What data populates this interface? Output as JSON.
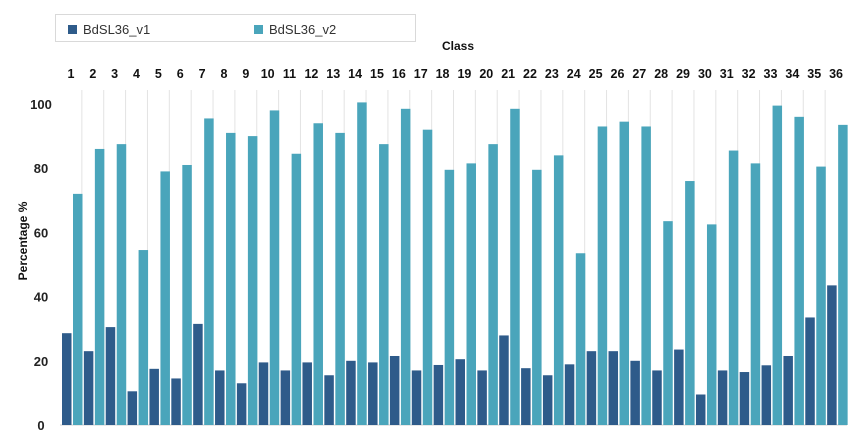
{
  "chart_data": {
    "type": "bar",
    "title": "",
    "xlabel": "Class",
    "ylabel": "Percentage %",
    "ylim": [
      0,
      100
    ],
    "yticks": [
      0,
      20,
      40,
      60,
      80,
      100
    ],
    "grid": false,
    "legend_position": "top-left",
    "categories": [
      "1",
      "2",
      "3",
      "4",
      "5",
      "6",
      "7",
      "8",
      "9",
      "10",
      "11",
      "12",
      "13",
      "14",
      "15",
      "16",
      "17",
      "18",
      "19",
      "20",
      "21",
      "22",
      "23",
      "24",
      "25",
      "26",
      "27",
      "28",
      "29",
      "30",
      "31",
      "32",
      "33",
      "34",
      "35",
      "36"
    ],
    "series": [
      {
        "name": "BdSL36_v1",
        "color": "#2e5b8a",
        "values": [
          28.6,
          23.0,
          30.5,
          10.5,
          17.5,
          14.5,
          31.5,
          17.0,
          13.0,
          19.5,
          17.0,
          19.5,
          15.5,
          20.0,
          19.5,
          21.5,
          17.0,
          18.7,
          20.5,
          17.0,
          27.9,
          17.7,
          15.5,
          18.9,
          23.0,
          23.0,
          20.0,
          17.0,
          23.5,
          9.5,
          17.0,
          16.5,
          18.6,
          21.5,
          33.5,
          43.5
        ]
      },
      {
        "name": "BdSL36_v2",
        "color": "#4aa5bb",
        "values": [
          72.0,
          86.0,
          87.5,
          54.5,
          79.0,
          81.0,
          95.5,
          91.0,
          90.0,
          98.0,
          84.5,
          94.0,
          91.0,
          100.5,
          87.5,
          98.5,
          92.0,
          79.5,
          81.5,
          87.5,
          98.5,
          79.5,
          84.0,
          53.5,
          93.0,
          94.5,
          93.0,
          63.5,
          76.0,
          62.5,
          85.5,
          81.5,
          99.5,
          96.0,
          80.5,
          93.5
        ]
      }
    ]
  }
}
